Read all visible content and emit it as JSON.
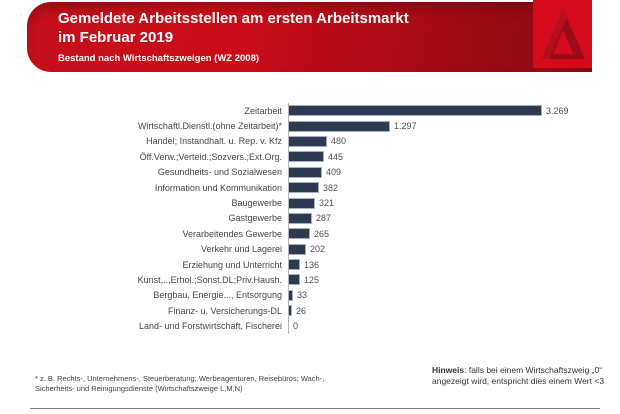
{
  "header": {
    "title_line1": "Gemeldete Arbeitsstellen am ersten Arbeitsmarkt",
    "title_line2": "im Februar 2019",
    "subtitle": "Bestand nach Wirtschaftszweigen (WZ 2008)",
    "logo_name": "bundesagentur-fuer-arbeit-logo",
    "colors": {
      "banner_bright_red": "#cb0c18",
      "banner_dark_red": "#8c0913",
      "logo_red": "#d50a1a",
      "logo_a_dark_red": "#9c0c18"
    }
  },
  "chart_data": {
    "type": "bar",
    "orientation": "horizontal",
    "title": "Gemeldete Arbeitsstellen am ersten Arbeitsmarkt im Februar 2019",
    "subtitle": "Bestand nach Wirtschaftszweigen (WZ 2008)",
    "categories": [
      "Zeitarbeit",
      "Wirtschaftl.Dienstl.(ohne Zeitarbeit)*",
      "Handel; Instandhalt. u. Rep. v. Kfz",
      "Öff.Verw.;Verteid.;Sozvers.;Ext.Org.",
      "Gesundheits- und Sozialwesen",
      "Information und Kommunikation",
      "Baugewerbe",
      "Gastgewerbe",
      "Verarbeitendes Gewerbe",
      "Verkehr und Lagerei",
      "Erziehung und Unterricht",
      "Kunst,..,Erhol.;Sonst.DL;Priv.Haush.",
      "Bergbau, Energie..., Entsorgung",
      "Finanz- u. Versicherungs-DL",
      "Land- und Forstwirtschaft, Fischerei"
    ],
    "values": [
      3269,
      1297,
      480,
      445,
      409,
      382,
      321,
      287,
      265,
      202,
      136,
      125,
      33,
      26,
      0
    ],
    "value_labels": [
      "3.269",
      "1.297",
      "480",
      "445",
      "409",
      "382",
      "321",
      "287",
      "265",
      "202",
      "136",
      "125",
      "33",
      "26",
      "0"
    ],
    "bar_color": "#2e3a52",
    "xlim": [
      0,
      3500
    ],
    "grid": false,
    "legend": false,
    "value_labels_position": "end-of-bar"
  },
  "footer": {
    "footnote_line1": "* z. B. Rechts-, Unternehmens-, Steuerberatung; Werbeagenturen, Reisebüros; Wach-,",
    "footnote_line2": "Sicherheits- und Reinigungsdienste (Wirtschaftszweige L,M,N)",
    "note_label": "Hinweis",
    "note_text": ": falls bei einem Wirtschaftszweig „0“ angezeigt wird, entspricht dies einem Wert <3"
  }
}
